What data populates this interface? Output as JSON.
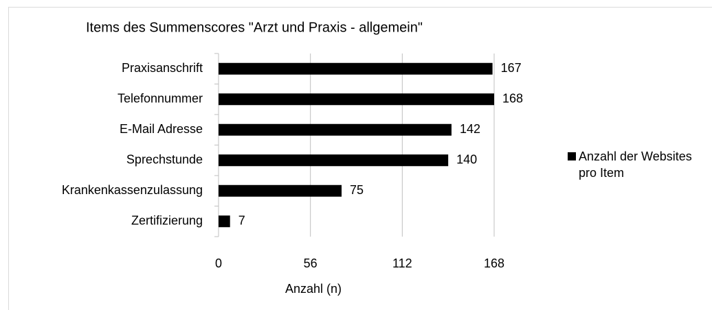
{
  "chart_data": {
    "type": "bar",
    "orientation": "horizontal",
    "title": "Items des Summenscores \"Arzt und Praxis - allgemein\"",
    "categories": [
      "Praxisanschrift",
      "Telefonnummer",
      "E-Mail Adresse",
      "Sprechstunde",
      "Krankenkassenzulassung",
      "Zertifizierung"
    ],
    "series": [
      {
        "name": "Anzahl der Websites pro Item",
        "color": "#000000",
        "values": [
          167,
          168,
          142,
          140,
          75,
          7
        ]
      }
    ],
    "xlabel": "Anzahl (n)",
    "xlim": [
      0,
      168
    ],
    "xticks": [
      0,
      56,
      112,
      168
    ],
    "grid": true,
    "legend": "right"
  }
}
